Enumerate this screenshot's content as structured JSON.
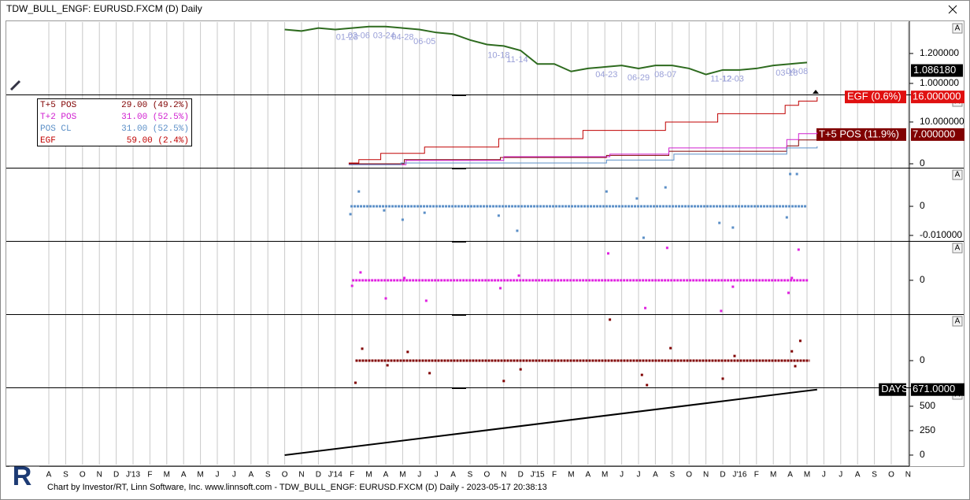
{
  "window": {
    "title": "TDW_BULL_ENGF: EURUSD.FXCM (D) Daily"
  },
  "x_axis": {
    "labels": [
      "A",
      "S",
      "O",
      "N",
      "D",
      "J'13",
      "F",
      "M",
      "A",
      "M",
      "J",
      "J",
      "A",
      "S",
      "O",
      "N",
      "D",
      "J'14",
      "F",
      "M",
      "A",
      "M",
      "J",
      "J",
      "A",
      "S",
      "O",
      "N",
      "D",
      "J'15",
      "F",
      "M",
      "A",
      "M",
      "J",
      "J",
      "A",
      "S",
      "O",
      "N",
      "D",
      "J'16",
      "F",
      "M",
      "A",
      "M",
      "J",
      "J",
      "A",
      "S",
      "O",
      "N"
    ]
  },
  "panes": [
    {
      "type": "price",
      "ylim": [
        0.926,
        1.41
      ],
      "yticks": [
        {
          "value": 1.2,
          "label": "1.200000"
        },
        {
          "value": 1.0,
          "label": "1.000000"
        }
      ],
      "color": "#2e6b1f",
      "x": [
        14,
        15,
        16,
        17,
        18,
        19,
        20,
        21,
        22,
        23,
        24,
        25,
        26,
        27,
        28,
        29,
        30,
        31,
        32,
        33,
        34,
        35,
        36,
        37,
        38,
        39,
        40,
        41,
        42,
        43,
        44,
        45
      ],
      "values": [
        1.36,
        1.35,
        1.37,
        1.36,
        1.37,
        1.38,
        1.38,
        1.37,
        1.36,
        1.34,
        1.33,
        1.29,
        1.26,
        1.25,
        1.22,
        1.13,
        1.13,
        1.08,
        1.1,
        1.11,
        1.12,
        1.1,
        1.12,
        1.12,
        1.1,
        1.06,
        1.09,
        1.09,
        1.1,
        1.12,
        1.13,
        1.14
      ],
      "last": {
        "value": 1.08618,
        "label": "1.086180"
      },
      "annotations": [
        {
          "x": 17.7,
          "label": "01-23"
        },
        {
          "x": 18.4,
          "label": "02-06"
        },
        {
          "x": 19.9,
          "label": "03-24"
        },
        {
          "x": 21.0,
          "label": "04-28"
        },
        {
          "x": 22.3,
          "label": "06-05"
        },
        {
          "x": 26.7,
          "label": "10-18"
        },
        {
          "x": 27.8,
          "label": "11-14"
        },
        {
          "x": 33.1,
          "label": "04-23"
        },
        {
          "x": 35.0,
          "label": "06-29"
        },
        {
          "x": 36.6,
          "label": "08-07"
        },
        {
          "x": 39.9,
          "label": "11-12"
        },
        {
          "x": 40.6,
          "label": "12-03"
        },
        {
          "x": 43.8,
          "label": "03-18"
        },
        {
          "x": 44.4,
          "label": "04-08"
        }
      ]
    },
    {
      "type": "steps",
      "ylim": [
        -0.94,
        16.4
      ],
      "yticks": [
        {
          "value": 10,
          "label": "10.000000"
        },
        0
      ],
      "series": [
        {
          "name": "T+5 POS",
          "summary": "29.00 (49.2%)",
          "color": "#800000",
          "x": [
            17.8,
            21.1,
            26.8,
            33.1,
            36.8,
            43.8,
            44.5,
            45.6
          ],
          "values": [
            0,
            1,
            1.5,
            2,
            3,
            4.3,
            5.7,
            7
          ],
          "tag": "T+5 POS (11.9%)",
          "last": {
            "value": 7,
            "label": "7.000000"
          }
        },
        {
          "name": "T+2 POS",
          "summary": "31.00 (52.5%)",
          "color": "#d020d0",
          "x": [
            17.8,
            21.2,
            27.0,
            33.3,
            36.8,
            43.8,
            44.5,
            45.6
          ],
          "values": [
            -0.2,
            0.8,
            1.7,
            2.3,
            3.8,
            5.8,
            7.2,
            7.5
          ]
        },
        {
          "name": "POS CL",
          "summary": "31.00 (52.5%)",
          "color": "#5b8fc7",
          "x": [
            17.8,
            20.9,
            33.1,
            37.1,
            43.8,
            45.6
          ],
          "values": [
            -0.2,
            0.2,
            0.9,
            2.3,
            3.8,
            4.2
          ]
        },
        {
          "name": "EGF",
          "summary": "59.00 (2.4%)",
          "color": "#c00000",
          "x": [
            17.8,
            18.4,
            19.7,
            22.3,
            26.7,
            31.7,
            36.6,
            39.7,
            43.7,
            44.5,
            45.6
          ],
          "values": [
            0.2,
            1,
            2.5,
            4,
            6,
            8,
            10,
            12,
            14,
            15,
            16
          ],
          "tag": "EGF (0.6%)",
          "last": {
            "value": 16,
            "label": "16.000000"
          }
        }
      ]
    },
    {
      "type": "scatter",
      "ylim": [
        -0.0119,
        0.013
      ],
      "yticks": [
        0,
        {
          "value": -0.01,
          "label": "-0.010000"
        }
      ],
      "color": "#5b8fc7",
      "x": [
        17.9,
        18.4,
        19.9,
        21.0,
        22.3,
        26.7,
        27.8,
        33.1,
        34.9,
        35.3,
        36.6,
        39.8,
        40.6,
        43.8,
        44.0,
        44.4
      ],
      "values": [
        -0.0027,
        0.0051,
        -0.0014,
        -0.0046,
        -0.0022,
        -0.0032,
        -0.0084,
        0.0051,
        0.0027,
        -0.0108,
        0.0065,
        -0.0057,
        -0.0073,
        -0.0038,
        0.0111,
        0.0111
      ]
    },
    {
      "type": "scatter",
      "ylim": [
        -0.0116,
        0.0132
      ],
      "yticks": [
        0
      ],
      "color": "#e020e0",
      "x": [
        18.0,
        18.5,
        20.0,
        21.1,
        22.4,
        26.8,
        27.9,
        33.2,
        35.4,
        36.7,
        39.9,
        40.6,
        43.9,
        44.1,
        44.5
      ],
      "values": [
        -0.0019,
        0.0027,
        -0.0062,
        0.0008,
        -0.007,
        -0.0027,
        0.0016,
        0.0092,
        -0.0095,
        0.0111,
        -0.0105,
        -0.0022,
        -0.0043,
        0.0008,
        0.0105
      ]
    },
    {
      "type": "scatter",
      "ylim": [
        -0.0092,
        0.0157
      ],
      "yticks": [
        0
      ],
      "color": "#800000",
      "x": [
        18.2,
        18.6,
        20.1,
        21.3,
        22.6,
        27.0,
        28.0,
        33.3,
        35.2,
        35.5,
        36.9,
        40.0,
        40.7,
        44.1,
        44.3,
        44.6
      ],
      "values": [
        -0.0076,
        0.0041,
        -0.0016,
        0.003,
        -0.0043,
        -0.007,
        -0.003,
        0.0141,
        -0.0049,
        -0.0084,
        0.0043,
        -0.0062,
        0.0016,
        0.0032,
        -0.0019,
        0.0068
      ]
    },
    {
      "type": "steps",
      "ylim": [
        -97,
        685
      ],
      "yticks": [
        500,
        250,
        0
      ],
      "series": [
        {
          "name": "DAYS",
          "color": "#000000",
          "x": [
            14,
            45.6
          ],
          "values": [
            0,
            671
          ],
          "tag": "DAYS",
          "last": {
            "value": 671,
            "label": "671.0000"
          },
          "straight": true
        }
      ]
    }
  ],
  "footer": "Chart by Investor/RT, Linn Software, Inc. www.linnsoft.com - TDW_BULL_ENGF: EURUSD.FXCM (D) Daily - 2023-05-17 20:38:13"
}
